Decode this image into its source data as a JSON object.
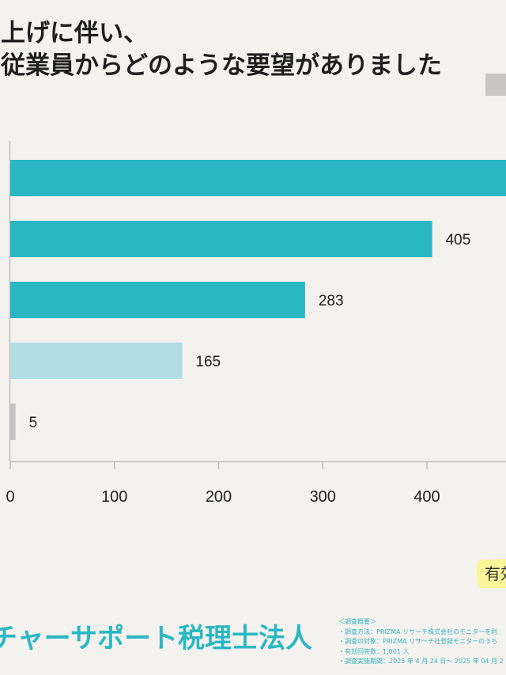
{
  "title": {
    "line1": "き上げに伴い、",
    "line2": "ト従業員からどのような要望がありました"
  },
  "badge": {
    "label": "有効"
  },
  "footer": {
    "brand": "チャーサポート税理士法人",
    "survey_heading": "＜調査概要＞",
    "survey_lines": [
      "・調査方法：PRIZMA リサーチ株式会社のモニターを利",
      "・調査の対象：PRIZMA リサーチ社登録モニターのうち",
      "・有効回答数：1,001 人",
      "・調査実施期間：2025 年 4 月 24 日～ 2025 年 04 月 2"
    ]
  },
  "chart_data": {
    "type": "bar",
    "orientation": "horizontal",
    "values": [
      null,
      405,
      283,
      165,
      5
    ],
    "bar_colors": [
      "#2ab7c3",
      "#2ab7c3",
      "#2ab7c3",
      "#b2dde3",
      "#c2c2c2"
    ],
    "xlim": [
      0,
      450
    ],
    "xticks": [
      0,
      100,
      200,
      300,
      400
    ],
    "grid": false,
    "accent_color": "#2ab7c3",
    "axis_color": "#bdbdbd"
  }
}
